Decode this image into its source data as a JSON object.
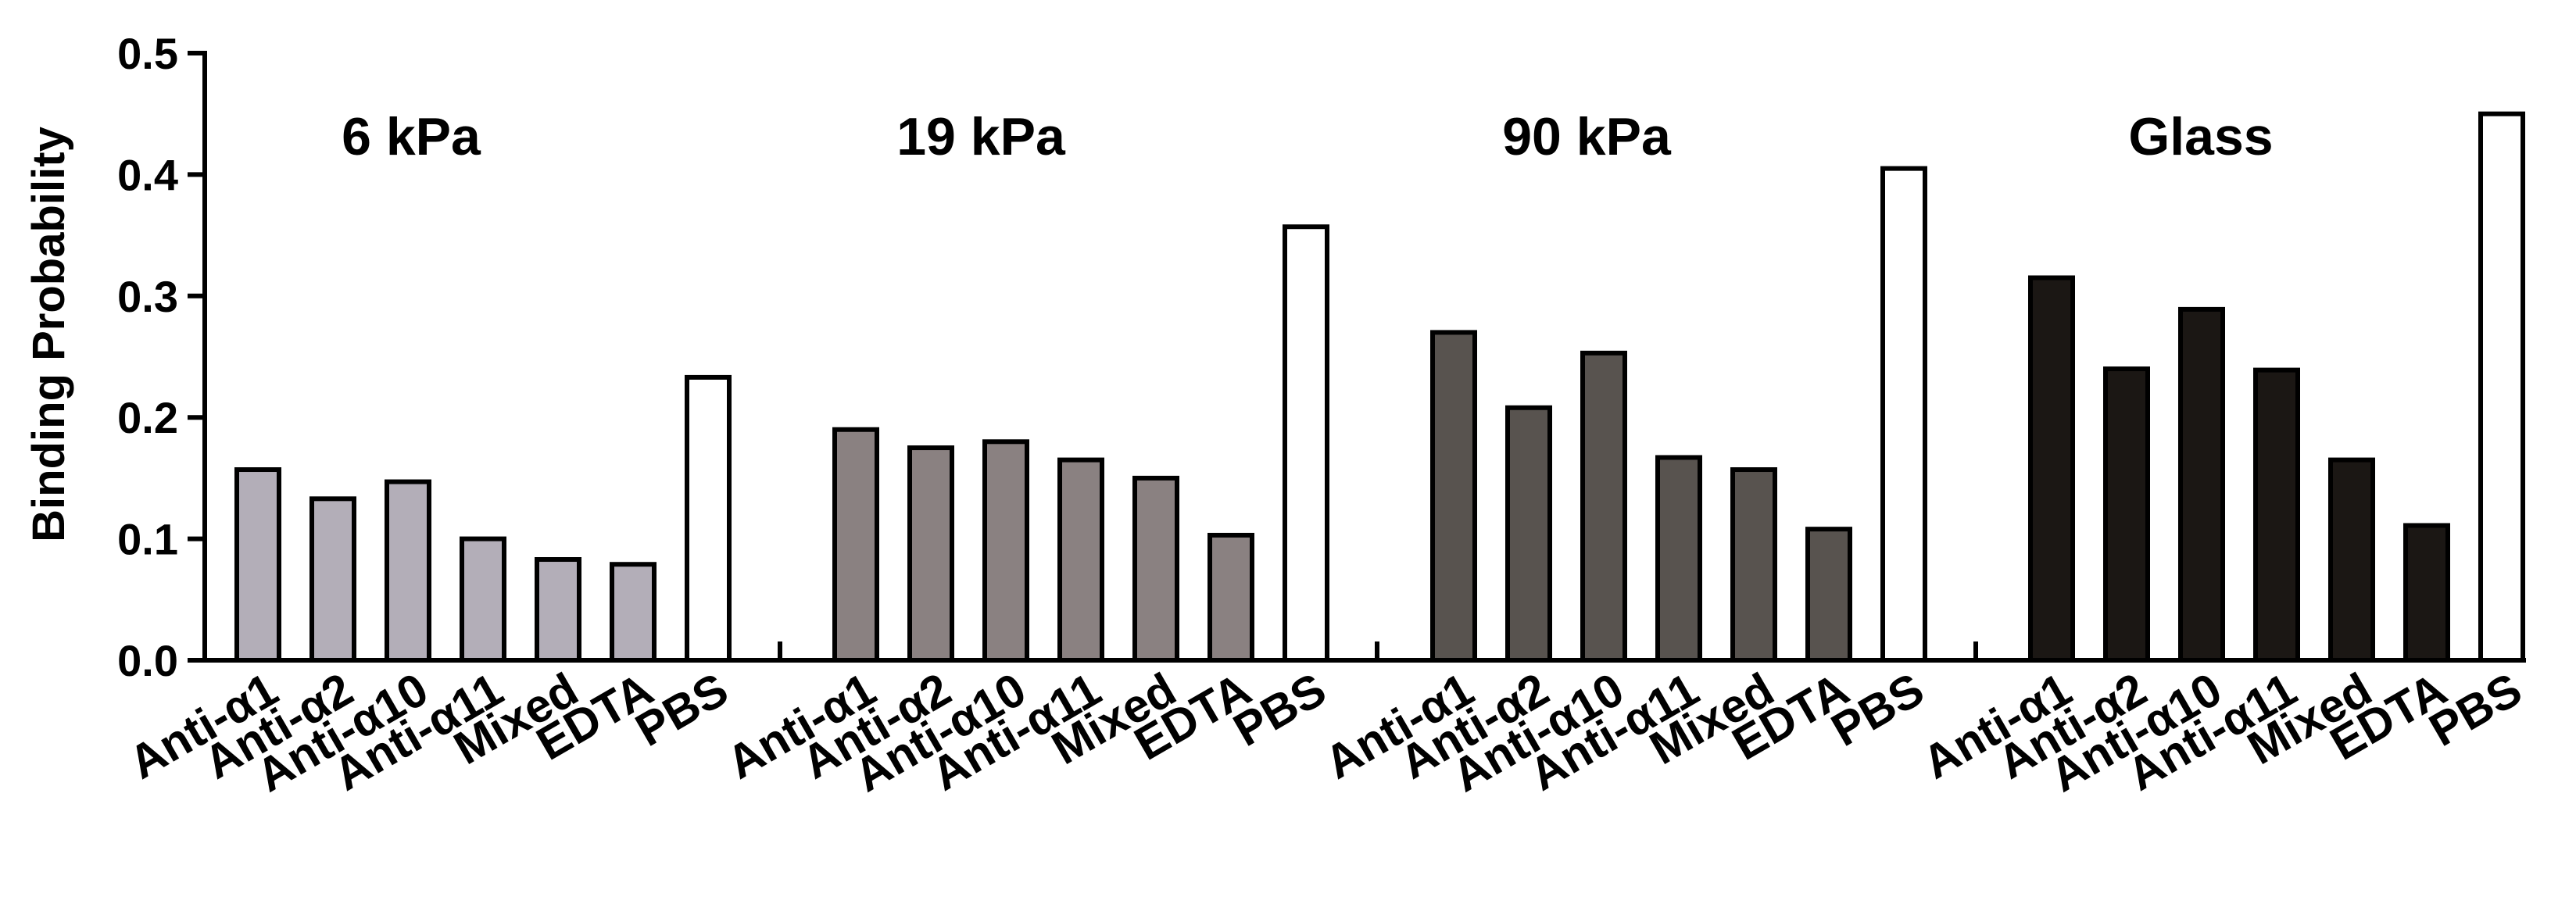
{
  "chart_data": {
    "type": "bar",
    "ylabel": "Binding Probability",
    "ylim": [
      0,
      0.5
    ],
    "yticks": [
      "0.0",
      "0.1",
      "0.2",
      "0.3",
      "0.4",
      "0.5"
    ],
    "categories": [
      "Anti-α1",
      "Anti-α2",
      "Anti-α10",
      "Anti-α11",
      "Mixed",
      "EDTA",
      "PBS"
    ],
    "groups": [
      {
        "title": "6 kPa",
        "values": [
          0.157,
          0.133,
          0.147,
          0.1,
          0.083,
          0.079,
          0.233
        ],
        "colors": [
          "#b3aeb8",
          "#b3aeb8",
          "#b3aeb8",
          "#b3aeb8",
          "#b3aeb8",
          "#b3aeb8",
          "#ffffff"
        ]
      },
      {
        "title": "19 kPa",
        "values": [
          0.19,
          0.175,
          0.18,
          0.165,
          0.15,
          0.103,
          0.357
        ],
        "colors": [
          "#8a8181",
          "#8a8181",
          "#8a8181",
          "#8a8181",
          "#8a8181",
          "#8a8181",
          "#ffffff"
        ]
      },
      {
        "title": "90 kPa",
        "values": [
          0.27,
          0.208,
          0.253,
          0.167,
          0.157,
          0.108,
          0.405
        ],
        "colors": [
          "#58534f",
          "#58534f",
          "#58534f",
          "#58534f",
          "#58534f",
          "#58534f",
          "#ffffff"
        ]
      },
      {
        "title": "Glass",
        "values": [
          0.315,
          0.24,
          0.289,
          0.239,
          0.165,
          0.111,
          0.45
        ],
        "colors": [
          "#1b1714",
          "#1b1714",
          "#1b1714",
          "#1b1714",
          "#1b1714",
          "#1b1714",
          "#ffffff"
        ]
      }
    ],
    "grid": false,
    "legend": "none"
  }
}
